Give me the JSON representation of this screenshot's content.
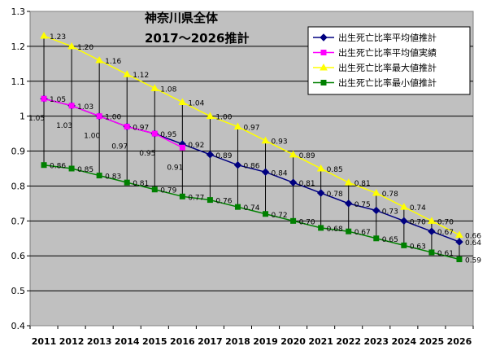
{
  "chart_data": {
    "type": "line",
    "title_line1": "神奈川県全体",
    "title_line2": "2017～2026推計",
    "x": [
      2011,
      2012,
      2013,
      2014,
      2015,
      2016,
      2017,
      2018,
      2019,
      2020,
      2021,
      2022,
      2023,
      2024,
      2025,
      2026
    ],
    "ylim": [
      0.4,
      1.3
    ],
    "yticks": [
      "0.4",
      "0.5",
      "0.6",
      "0.7",
      "0.8",
      "0.9",
      "1",
      "1.1",
      "1.2",
      "1.3"
    ],
    "grid": true,
    "legend_position": "top-right",
    "series": [
      {
        "name": "出生死亡比率平均値推計",
        "color": "#000080",
        "marker": "diamond",
        "values": [
          1.05,
          1.03,
          1.0,
          0.97,
          0.95,
          0.92,
          0.89,
          0.86,
          0.84,
          0.81,
          0.78,
          0.75,
          0.73,
          0.7,
          0.67,
          0.64
        ],
        "labels": [
          "1.05",
          "1.03",
          "1.00",
          "0.97",
          "0.95",
          "0.92",
          "0.89",
          "0.86",
          "0.84",
          "0.81",
          "0.78",
          "0.75",
          "0.73",
          "0.70",
          "0.67",
          "0.64"
        ]
      },
      {
        "name": "出生死亡比率平均値実績",
        "color": "#ff00ff",
        "marker": "square",
        "values": [
          1.05,
          1.03,
          1.0,
          0.97,
          0.95,
          0.91,
          null,
          null,
          null,
          null,
          null,
          null,
          null,
          null,
          null,
          null
        ],
        "labels": [
          "1.05",
          "1.03",
          "1.00",
          "0.97",
          "0.95",
          "0.91"
        ]
      },
      {
        "name": "出生死亡比率最大値推計",
        "color": "#ffff00",
        "marker": "triangle",
        "values": [
          1.23,
          1.2,
          1.16,
          1.12,
          1.08,
          1.04,
          1.0,
          0.97,
          0.93,
          0.89,
          0.85,
          0.81,
          0.78,
          0.74,
          0.7,
          0.66
        ],
        "labels": [
          "1.23",
          "1.20",
          "1.16",
          "1.12",
          "1.08",
          "1.04",
          "1.00",
          "0.97",
          "0.93",
          "0.89",
          "0.85",
          "0.81",
          "0.78",
          "0.74",
          "0.70",
          "0.66"
        ]
      },
      {
        "name": "出生死亡比率最小値推計",
        "color": "#008000",
        "marker": "square",
        "values": [
          0.86,
          0.85,
          0.83,
          0.81,
          0.79,
          0.77,
          0.76,
          0.74,
          0.72,
          0.7,
          0.68,
          0.67,
          0.65,
          0.63,
          0.61,
          0.59
        ],
        "labels": [
          "0.86",
          "0.85",
          "0.83",
          "0.81",
          "0.79",
          "0.77",
          "0.76",
          "0.74",
          "0.72",
          "0.70",
          "0.68",
          "0.67",
          "0.65",
          "0.63",
          "0.61",
          "0.59"
        ]
      }
    ]
  }
}
